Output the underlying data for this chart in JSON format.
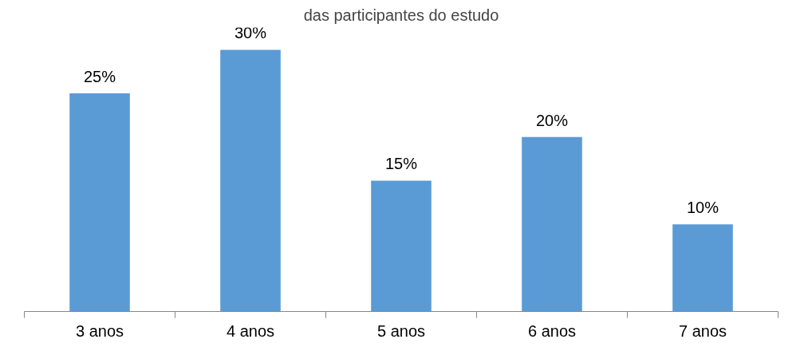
{
  "chart_data": {
    "type": "bar",
    "title": "das participantes do estudo",
    "categories": [
      "3 anos",
      "4 anos",
      "5 anos",
      "6 anos",
      "7 anos"
    ],
    "values": [
      25,
      30,
      15,
      20,
      10
    ],
    "value_labels": [
      "25%",
      "30%",
      "15%",
      "20%",
      "10%"
    ],
    "color": "#5b9bd5",
    "grid": false
  }
}
